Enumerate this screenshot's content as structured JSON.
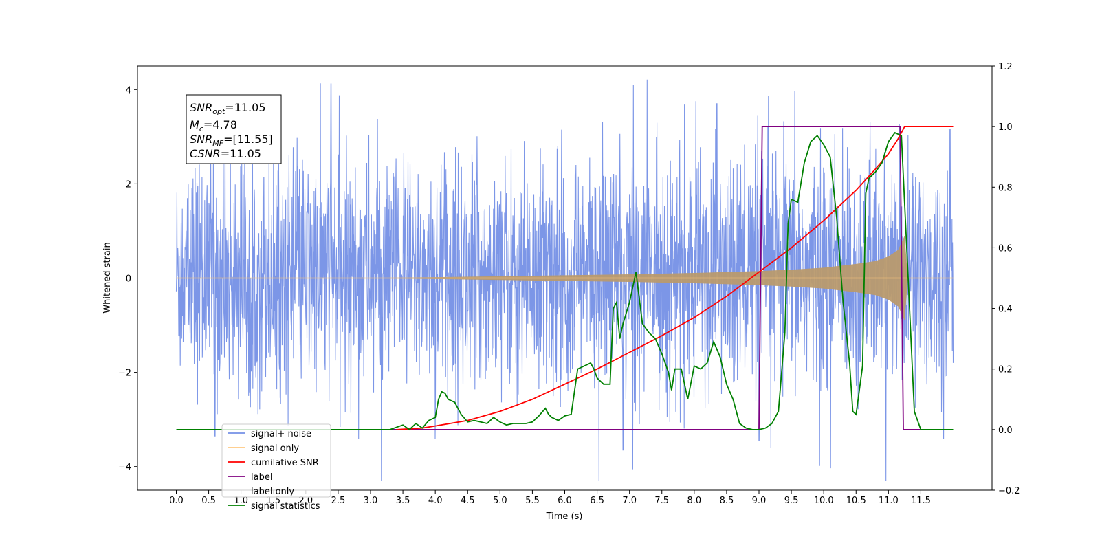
{
  "chart_data": {
    "type": "line",
    "title": "",
    "xlabel": "Time (s)",
    "ylabel_left": "Whitened strain",
    "ylabel_right": "",
    "xlim": [
      -0.6,
      12.6
    ],
    "ylim_left": [
      -4.5,
      4.5
    ],
    "ylim_right": [
      -0.2,
      1.2
    ],
    "x_ticks": [
      "0.0",
      "0.5",
      "1.0",
      "1.5",
      "2.0",
      "2.5",
      "3.0",
      "3.5",
      "4.0",
      "4.5",
      "5.0",
      "5.5",
      "6.0",
      "6.5",
      "7.0",
      "7.5",
      "8.0",
      "8.5",
      "9.0",
      "9.5",
      "10.0",
      "10.5",
      "11.0",
      "11.5"
    ],
    "y_ticks_left": [
      "4",
      "2",
      "0",
      "−2",
      "−4"
    ],
    "y_ticks_right": [
      "1.2",
      "1.0",
      "0.8",
      "0.6",
      "0.4",
      "0.2",
      "0.0",
      "−0.2"
    ],
    "grid": false,
    "legend_position": "lower-left",
    "info_box": {
      "snr_opt": "=11.05",
      "mc": "=4.78",
      "snr_mf": "=[11.55]",
      "csnr": "=11.05"
    },
    "series": [
      {
        "name": "signal+ noise",
        "color": "#7590e6",
        "axis": "left",
        "description_of_values": "noise band",
        "x_range": [
          0.0,
          12.0
        ],
        "envelope_typical": [
          -1.5,
          1.7
        ],
        "peaks_high": [
          [
            2.39,
            4.12
          ],
          [
            8.35,
            3.7
          ],
          [
            9.15,
            3.85
          ],
          [
            11.95,
            3.15
          ]
        ],
        "peaks_low": [
          [
            7.05,
            -4.05
          ],
          [
            6.9,
            -3.65
          ],
          [
            11.85,
            -3.4
          ],
          [
            0.6,
            -3.35
          ],
          [
            9.0,
            -3.45
          ]
        ]
      },
      {
        "name": "signal only",
        "color": "#c9a06e",
        "axis": "left",
        "amplitude_envelope": {
          "t": [
            0.0,
            3.0,
            4.0,
            5.0,
            6.0,
            7.0,
            8.0,
            9.0,
            9.5,
            10.0,
            10.5,
            10.8,
            11.0,
            11.15,
            11.25,
            11.3,
            12.0
          ],
          "a": [
            0.0,
            0.005,
            0.02,
            0.04,
            0.06,
            0.08,
            0.11,
            0.15,
            0.18,
            0.22,
            0.3,
            0.36,
            0.46,
            0.6,
            0.9,
            0.0,
            0.0
          ]
        }
      },
      {
        "name": "cumilative SNR",
        "color": "#ff0000",
        "axis": "right",
        "x": [
          3.4,
          3.8,
          4.0,
          4.5,
          5.0,
          5.5,
          6.0,
          6.5,
          7.0,
          7.5,
          8.0,
          8.5,
          9.0,
          9.5,
          10.0,
          10.5,
          10.8,
          11.0,
          11.15,
          11.25,
          11.3,
          12.0
        ],
        "y": [
          0.0,
          0.005,
          0.012,
          0.03,
          0.06,
          0.1,
          0.15,
          0.2,
          0.255,
          0.31,
          0.37,
          0.44,
          0.52,
          0.6,
          0.69,
          0.79,
          0.86,
          0.91,
          0.96,
          1.0,
          1.0,
          1.0
        ]
      },
      {
        "name": "label",
        "color": "#800080",
        "axis": "right",
        "x": [
          0.0,
          9.0,
          9.05,
          11.18,
          11.23,
          12.0
        ],
        "y": [
          0.0,
          0.0,
          1.0,
          1.0,
          0.0,
          0.0
        ]
      },
      {
        "name": "label only",
        "color": "#ffffff",
        "axis": "right",
        "x": [],
        "y": []
      },
      {
        "name": "signal statistics",
        "color": "#008000",
        "axis": "right",
        "x": [
          0.0,
          3.3,
          3.5,
          3.6,
          3.7,
          3.8,
          3.9,
          4.0,
          4.05,
          4.1,
          4.15,
          4.2,
          4.3,
          4.4,
          4.5,
          4.6,
          4.7,
          4.8,
          4.9,
          5.0,
          5.1,
          5.2,
          5.3,
          5.4,
          5.5,
          5.6,
          5.7,
          5.75,
          5.8,
          5.9,
          6.0,
          6.1,
          6.2,
          6.3,
          6.4,
          6.45,
          6.5,
          6.6,
          6.7,
          6.75,
          6.8,
          6.85,
          6.9,
          7.0,
          7.1,
          7.2,
          7.3,
          7.4,
          7.5,
          7.6,
          7.65,
          7.7,
          7.8,
          7.9,
          8.0,
          8.1,
          8.2,
          8.3,
          8.4,
          8.5,
          8.6,
          8.7,
          8.8,
          8.9,
          9.0,
          9.1,
          9.2,
          9.3,
          9.4,
          9.45,
          9.5,
          9.6,
          9.7,
          9.8,
          9.9,
          10.0,
          10.1,
          10.2,
          10.3,
          10.4,
          10.45,
          10.5,
          10.6,
          10.65,
          10.7,
          10.8,
          10.9,
          11.0,
          11.1,
          11.2,
          11.3,
          11.4,
          11.5,
          12.0
        ],
        "y": [
          0.0,
          0.0,
          0.015,
          0.0,
          0.02,
          0.005,
          0.03,
          0.04,
          0.1,
          0.125,
          0.12,
          0.1,
          0.09,
          0.05,
          0.025,
          0.03,
          0.025,
          0.02,
          0.04,
          0.025,
          0.015,
          0.02,
          0.02,
          0.02,
          0.025,
          0.045,
          0.07,
          0.05,
          0.04,
          0.03,
          0.045,
          0.05,
          0.2,
          0.21,
          0.22,
          0.2,
          0.17,
          0.15,
          0.15,
          0.4,
          0.42,
          0.3,
          0.35,
          0.42,
          0.52,
          0.35,
          0.32,
          0.3,
          0.25,
          0.19,
          0.13,
          0.2,
          0.2,
          0.1,
          0.21,
          0.2,
          0.22,
          0.29,
          0.24,
          0.15,
          0.1,
          0.02,
          0.005,
          0.0,
          0.0,
          0.005,
          0.02,
          0.06,
          0.32,
          0.68,
          0.76,
          0.75,
          0.88,
          0.95,
          0.97,
          0.94,
          0.9,
          0.7,
          0.42,
          0.22,
          0.06,
          0.05,
          0.21,
          0.78,
          0.83,
          0.85,
          0.88,
          0.95,
          0.98,
          0.97,
          0.52,
          0.06,
          0.0,
          0.0
        ]
      }
    ]
  }
}
